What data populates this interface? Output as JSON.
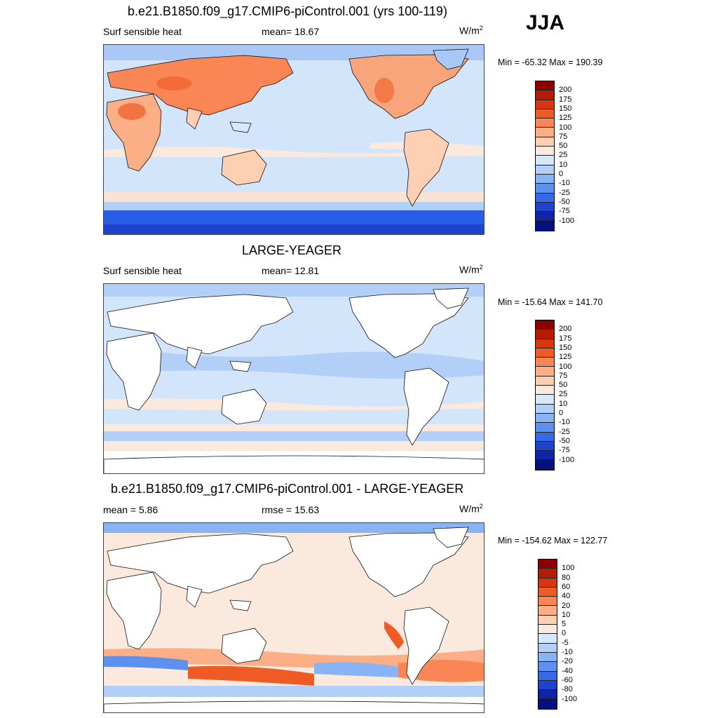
{
  "season": "JJA",
  "colors": {
    "land_outline": "#111111",
    "ocean_base": "#d3e5fb"
  },
  "panels": [
    {
      "title": "b.e21.B1850.f09_g17.CMIP6-piControl.001 (yrs 100-119)",
      "left_label": "Surf sensible heat",
      "mid_label": "mean=  18.67",
      "units_base": "W/m",
      "units_sup": "2",
      "minmax": "Min = -65.32 Max = 190.39",
      "colorbar": {
        "labels": [
          "200",
          "175",
          "150",
          "125",
          "100",
          "75",
          "50",
          "25",
          "10",
          "0",
          "-10",
          "-25",
          "-50",
          "-75",
          "-100"
        ],
        "colors": [
          "#8b0000",
          "#b31d06",
          "#d7370e",
          "#ef5b25",
          "#f98654",
          "#fcae86",
          "#fdd0b3",
          "#fbe9dd",
          "#d8e8fb",
          "#b2cff8",
          "#88b3f5",
          "#5e90ef",
          "#3569e6",
          "#1d43cf",
          "#1024a8",
          "#04127d"
        ]
      }
    },
    {
      "title": "LARGE-YEAGER",
      "left_label": "Surf sensible heat",
      "mid_label": "mean=  12.81",
      "units_base": "W/m",
      "units_sup": "2",
      "minmax": "Min = -15.64 Max = 141.70",
      "colorbar": {
        "labels": [
          "200",
          "175",
          "150",
          "125",
          "100",
          "75",
          "50",
          "25",
          "10",
          "0",
          "-10",
          "-25",
          "-50",
          "-75",
          "-100"
        ],
        "colors": [
          "#8b0000",
          "#b31d06",
          "#d7370e",
          "#ef5b25",
          "#f98654",
          "#fcae86",
          "#fdd0b3",
          "#fbe9dd",
          "#d8e8fb",
          "#b2cff8",
          "#88b3f5",
          "#5e90ef",
          "#3569e6",
          "#1d43cf",
          "#1024a8",
          "#04127d"
        ]
      }
    },
    {
      "title": "b.e21.B1850.f09_g17.CMIP6-piControl.001 - LARGE-YEAGER",
      "left_label": "mean =   5.86",
      "mid_label": "rmse =   15.63",
      "units_base": "W/m",
      "units_sup": "2",
      "minmax": "Min = -154.62 Max = 122.77",
      "colorbar": {
        "labels": [
          "100",
          "80",
          "60",
          "40",
          "20",
          "10",
          "5",
          "0",
          "-5",
          "-10",
          "-20",
          "-40",
          "-60",
          "-80",
          "-100"
        ],
        "colors": [
          "#8b0000",
          "#b31d06",
          "#d7370e",
          "#ef5b25",
          "#f98654",
          "#fcae86",
          "#fdd0b3",
          "#fbe9dd",
          "#d8e8fb",
          "#b2cff8",
          "#88b3f5",
          "#5e90ef",
          "#3569e6",
          "#1d43cf",
          "#1024a8",
          "#04127d"
        ]
      }
    }
  ]
}
